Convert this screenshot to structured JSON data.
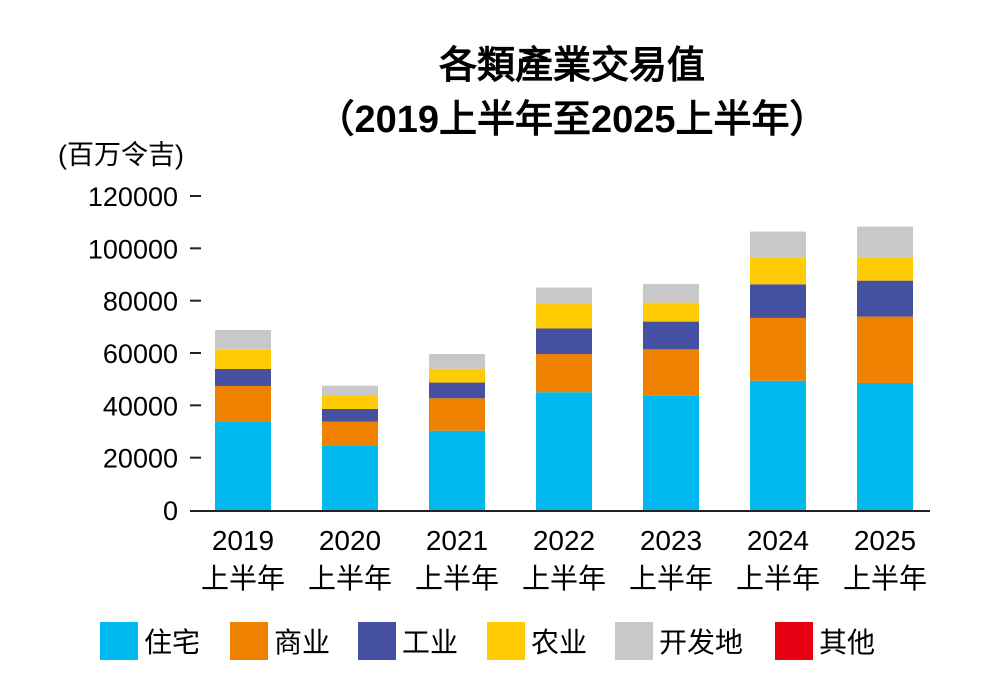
{
  "chart_data": {
    "type": "bar",
    "stacked": true,
    "title": "各類產業交易值",
    "subtitle": "（2019上半年至2025上半年）",
    "ylabel": "(百万令吉)",
    "ylim": [
      0,
      120000
    ],
    "yticks": [
      "0",
      "20000",
      "40000",
      "60000",
      "80000",
      "100000",
      "120000"
    ],
    "grid": false,
    "legend_position": "bottom",
    "categories": [
      [
        "2019",
        "上半年"
      ],
      [
        "2020",
        "上半年"
      ],
      [
        "2021",
        "上半年"
      ],
      [
        "2022",
        "上半年"
      ],
      [
        "2023",
        "上半年"
      ],
      [
        "2024",
        "上半年"
      ],
      [
        "2025",
        "上半年"
      ]
    ],
    "series": [
      {
        "name": "住宅",
        "color": "#00b9ef",
        "values": [
          33800,
          24600,
          30300,
          45000,
          43700,
          49400,
          48550
        ]
      },
      {
        "name": "商业",
        "color": "#ef8200",
        "values": [
          13600,
          9200,
          12400,
          14600,
          17700,
          24000,
          25350
        ]
      },
      {
        "name": "工业",
        "color": "#4650a0",
        "values": [
          6500,
          4800,
          6000,
          9800,
          10600,
          12850,
          13750
        ]
      },
      {
        "name": "农业",
        "color": "#ffcb05",
        "values": [
          7300,
          5400,
          5300,
          9300,
          7250,
          10150,
          8750
        ]
      },
      {
        "name": "开发地",
        "color": "#c8c8c8",
        "values": [
          7600,
          3500,
          5600,
          6300,
          7150,
          10000,
          11900
        ]
      },
      {
        "name": "其他",
        "color": "#e60012",
        "values": [
          0,
          0,
          0,
          0,
          0,
          0,
          0
        ]
      }
    ]
  }
}
